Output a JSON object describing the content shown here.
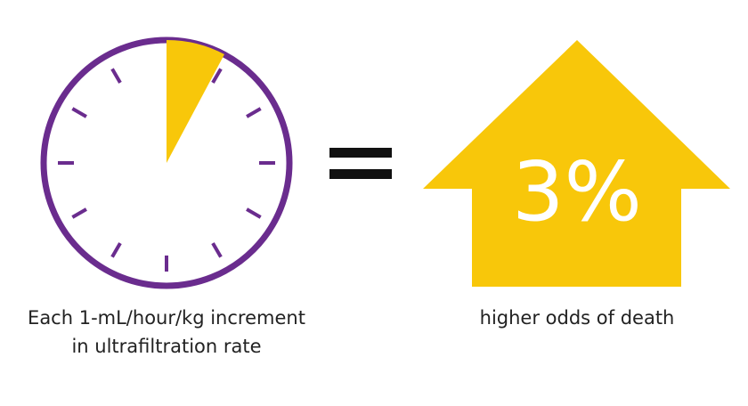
{
  "left_caption": [
    "Each 1-mL/hour/kg increment",
    "in ultrafiltration rate"
  ],
  "result_value": "3%",
  "result_caption": "higher odds of death"
}
